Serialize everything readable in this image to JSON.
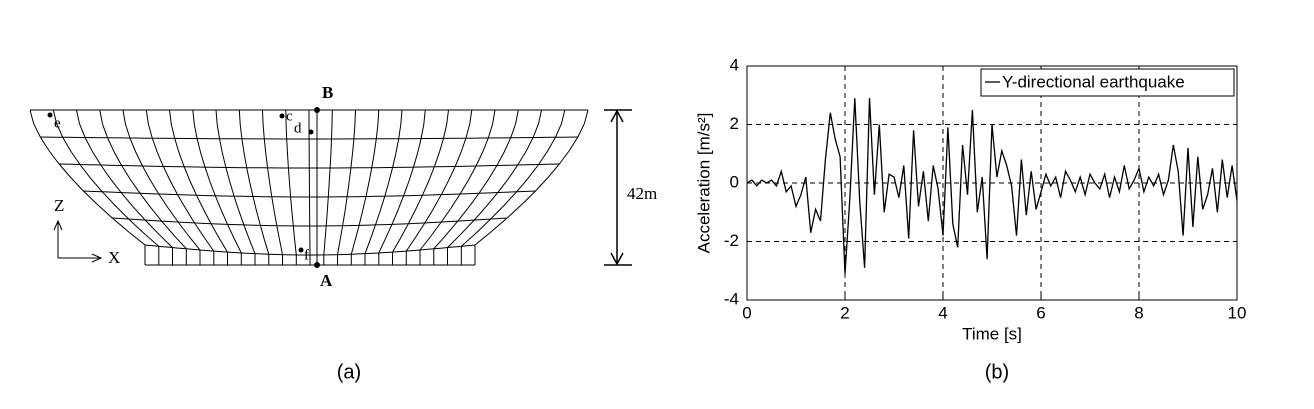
{
  "diagram": {
    "points": {
      "B": "B",
      "A": "A",
      "c": "c",
      "d": "d",
      "e": "e",
      "f": "f"
    },
    "dimension": "42m",
    "axis_z": "Z",
    "axis_x": "X"
  },
  "captions": [
    "(a)",
    "(b)"
  ],
  "chart_data": {
    "type": "line",
    "x_label": "Time [s]",
    "y_label": "Acceleration [m/s²]",
    "x": [
      0,
      0.1,
      0.2,
      0.3,
      0.4,
      0.5,
      0.6,
      0.7,
      0.8,
      0.9,
      1,
      1.1,
      1.2,
      1.3,
      1.4,
      1.5,
      1.6,
      1.7,
      1.8,
      1.9,
      2,
      2.1,
      2.2,
      2.3,
      2.4,
      2.5,
      2.6,
      2.7,
      2.8,
      2.9,
      3,
      3.1,
      3.2,
      3.3,
      3.4,
      3.5,
      3.6,
      3.7,
      3.8,
      3.9,
      4,
      4.1,
      4.2,
      4.3,
      4.4,
      4.5,
      4.6,
      4.7,
      4.8,
      4.9,
      5,
      5.1,
      5.2,
      5.3,
      5.4,
      5.5,
      5.6,
      5.7,
      5.8,
      5.9,
      6,
      6.1,
      6.2,
      6.3,
      6.4,
      6.5,
      6.6,
      6.7,
      6.8,
      6.9,
      7,
      7.1,
      7.2,
      7.3,
      7.4,
      7.5,
      7.6,
      7.7,
      7.8,
      7.9,
      8,
      8.1,
      8.2,
      8.3,
      8.4,
      8.5,
      8.6,
      8.7,
      8.8,
      8.9,
      9,
      9.1,
      9.2,
      9.3,
      9.4,
      9.5,
      9.6,
      9.7,
      9.8,
      9.9,
      10
    ],
    "series": [
      {
        "name": "Y-directional earthquake",
        "color": "#000000",
        "values": [
          0,
          0.1,
          -0.1,
          0.1,
          0,
          0.1,
          -0.1,
          0.4,
          -0.3,
          -0.1,
          -0.8,
          -0.4,
          0.2,
          -1.7,
          -0.9,
          -1.3,
          0.8,
          2.4,
          1.5,
          0.9,
          -3.1,
          -0.5,
          2.9,
          -0.6,
          -2.9,
          2.9,
          -0.4,
          2.0,
          -1.0,
          0.3,
          0.2,
          -0.5,
          0.6,
          -1.9,
          1.8,
          -0.8,
          0.4,
          -1.3,
          0.6,
          -0.2,
          -1.8,
          1.9,
          -1.4,
          -2.2,
          1.3,
          -0.4,
          2.5,
          -1.0,
          0.2,
          -2.6,
          2.0,
          0.2,
          1.1,
          0.6,
          -0.1,
          -1.8,
          0.8,
          -1.1,
          0.4,
          -0.9,
          -0.3,
          0.3,
          -0.1,
          0.2,
          -0.5,
          0.4,
          0.1,
          -0.3,
          0.2,
          -0.4,
          0.3,
          0,
          -0.2,
          0.3,
          -0.5,
          0.2,
          -0.3,
          0.6,
          -0.2,
          0.1,
          0.5,
          -0.3,
          0.2,
          -0.1,
          0.3,
          -0.4,
          0.1,
          1.3,
          0.4,
          -1.8,
          1.2,
          -1.5,
          0.9,
          -0.9,
          -0.4,
          0.5,
          -1.0,
          0.8,
          -0.5,
          0.6,
          -0.6
        ]
      }
    ],
    "xlim": [
      0,
      10
    ],
    "xticks": [
      0,
      2,
      4,
      6,
      8,
      10
    ],
    "ylim": [
      -4,
      4
    ],
    "yticks": [
      -4,
      -2,
      0,
      2,
      4
    ],
    "grid": true,
    "legend": "upper right"
  }
}
